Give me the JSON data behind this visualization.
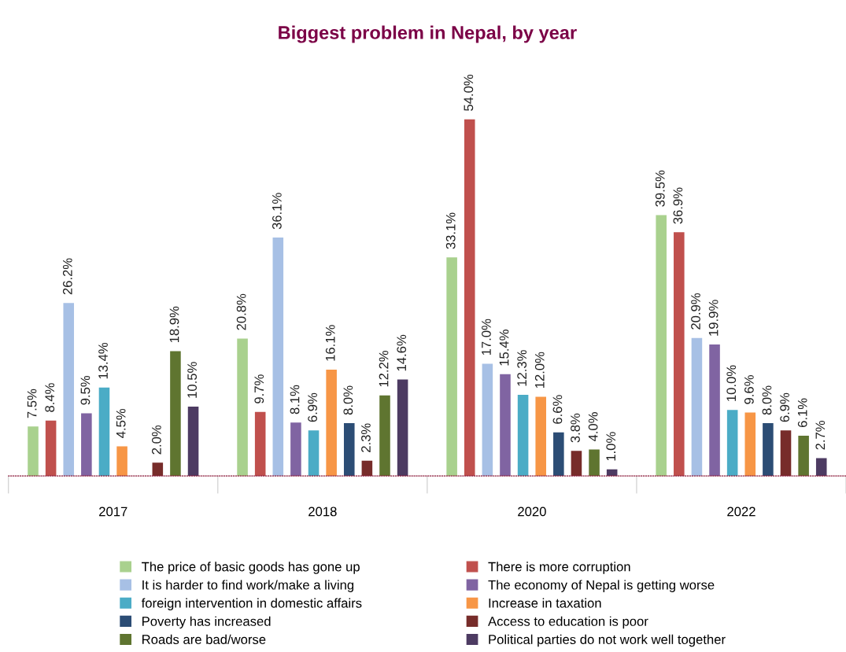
{
  "chart_data": {
    "type": "bar",
    "title": "Biggest problem in Nepal, by year",
    "categories": [
      "2017",
      "2018",
      "2020",
      "2022"
    ],
    "legend": "bottom",
    "grid": false,
    "series": [
      {
        "name": "The price of basic goods has gone up",
        "color": "#a9d18e",
        "values": [
          7.5,
          20.8,
          33.1,
          39.5
        ],
        "value_labels": [
          "7.5%",
          "20.8%",
          "33.1%",
          "39.5%"
        ]
      },
      {
        "name": "There is more corruption",
        "color": "#c0504d",
        "values": [
          8.4,
          9.7,
          54.0,
          36.9
        ],
        "value_labels": [
          "8.4%",
          "9.7%",
          "54.0%",
          "36.9%"
        ]
      },
      {
        "name": "It is harder to find work/make a living",
        "color": "#a7c0e5",
        "values": [
          26.2,
          36.1,
          17.0,
          20.9
        ],
        "value_labels": [
          "26.2%",
          "36.1%",
          "17.0%",
          "20.9%"
        ]
      },
      {
        "name": "The economy of Nepal is getting worse",
        "color": "#8064a2",
        "values": [
          9.5,
          8.1,
          15.4,
          19.9
        ],
        "value_labels": [
          "9.5%",
          "8.1%",
          "15.4%",
          "19.9%"
        ]
      },
      {
        "name": "foreign intervention in domestic affairs",
        "color": "#4bacc6",
        "values": [
          13.4,
          6.9,
          12.3,
          10.0
        ],
        "value_labels": [
          "13.4%",
          "6.9%",
          "12.3%",
          "10.0%"
        ]
      },
      {
        "name": "Increase in taxation",
        "color": "#f79646",
        "values": [
          4.5,
          16.1,
          12.0,
          9.6
        ],
        "value_labels": [
          "4.5%",
          "16.1%",
          "12.0%",
          "9.6%"
        ]
      },
      {
        "name": "Poverty has increased",
        "color": "#2c4d75",
        "values": [
          null,
          8.0,
          6.6,
          8.0
        ],
        "value_labels": [
          null,
          "8.0%",
          "6.6%",
          "8.0%"
        ]
      },
      {
        "name": "Access to education is poor",
        "color": "#772c2a",
        "values": [
          2.0,
          2.3,
          3.8,
          6.9
        ],
        "value_labels": [
          "2.0%",
          "2.3%",
          "3.8%",
          "6.9%"
        ]
      },
      {
        "name": "Roads are bad/worse",
        "color": "#5f7530",
        "values": [
          18.9,
          12.2,
          4.0,
          6.1
        ],
        "value_labels": [
          "18.9%",
          "12.2%",
          "4.0%",
          "6.1%"
        ]
      },
      {
        "name": "Political parties do not work well together",
        "color": "#4d3b62",
        "values": [
          10.5,
          14.6,
          1.0,
          2.7
        ],
        "value_labels": [
          "10.5%",
          "14.6%",
          "1.0%",
          "2.7%"
        ]
      }
    ]
  }
}
